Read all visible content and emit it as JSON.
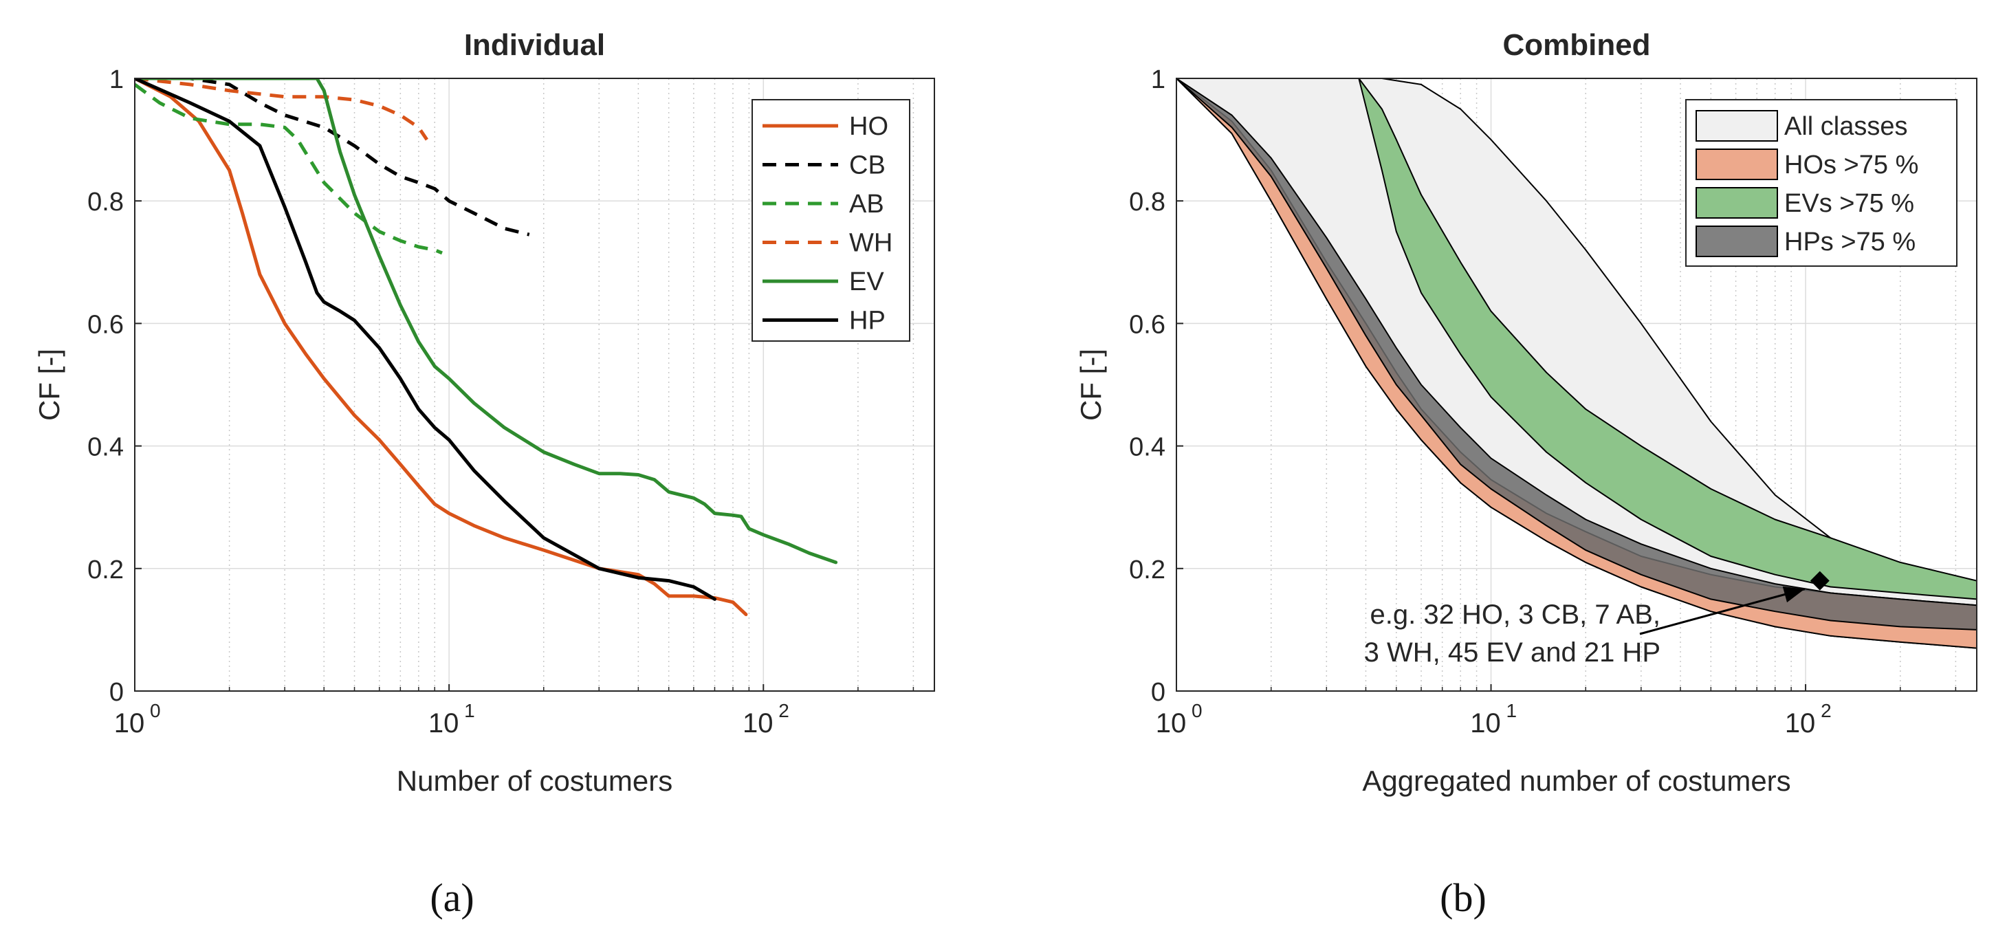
{
  "chart_data": [
    {
      "id": "a",
      "type": "line",
      "title": "Individual",
      "xlabel": "Number of costumers",
      "ylabel": "CF [-]",
      "xscale": "log",
      "xlim": [
        1,
        350
      ],
      "ylim": [
        0,
        1
      ],
      "grid": true,
      "legend_position": "top-right",
      "panel_label": "(a)",
      "x_tick_labels": [
        {
          "base": "10",
          "exp": "0"
        },
        {
          "base": "10",
          "exp": "1"
        },
        {
          "base": "10",
          "exp": "2"
        }
      ],
      "y_tick_labels": [
        "0",
        "0.2",
        "0.4",
        "0.6",
        "0.8",
        "1"
      ],
      "series": [
        {
          "name": "HO",
          "color": "#D95319",
          "dash": "solid",
          "x": [
            1,
            1.3,
            1.6,
            2,
            2.2,
            2.5,
            3,
            3.5,
            4,
            5,
            6,
            7,
            8,
            9,
            10,
            12,
            15,
            20,
            30,
            40,
            45,
            50,
            60,
            70,
            80,
            88
          ],
          "y": [
            1,
            0.97,
            0.93,
            0.85,
            0.78,
            0.68,
            0.6,
            0.55,
            0.51,
            0.45,
            0.41,
            0.37,
            0.335,
            0.305,
            0.29,
            0.27,
            0.25,
            0.23,
            0.2,
            0.19,
            0.175,
            0.155,
            0.155,
            0.152,
            0.145,
            0.125
          ]
        },
        {
          "name": "CB",
          "color": "#000000",
          "dash": "dashed",
          "x": [
            1,
            1.5,
            2,
            2.5,
            3,
            4,
            5,
            6,
            7,
            8,
            9,
            10,
            12,
            15,
            18
          ],
          "y": [
            1,
            1,
            0.99,
            0.96,
            0.94,
            0.92,
            0.89,
            0.86,
            0.84,
            0.83,
            0.82,
            0.8,
            0.78,
            0.755,
            0.745
          ]
        },
        {
          "name": "AB",
          "color": "#2E9A2E",
          "dash": "dashed",
          "x": [
            1,
            1.2,
            1.5,
            2,
            2.5,
            3,
            3.3,
            4,
            5,
            6,
            7,
            8,
            9,
            9.5
          ],
          "y": [
            0.99,
            0.96,
            0.935,
            0.925,
            0.925,
            0.92,
            0.9,
            0.83,
            0.78,
            0.75,
            0.735,
            0.725,
            0.72,
            0.715
          ]
        },
        {
          "name": "WH",
          "color": "#D95319",
          "dash": "dashed",
          "x": [
            1,
            1.5,
            2,
            3,
            4,
            5,
            6,
            7,
            8,
            8.5
          ],
          "y": [
            1,
            0.99,
            0.98,
            0.97,
            0.97,
            0.965,
            0.955,
            0.94,
            0.92,
            0.9
          ]
        },
        {
          "name": "EV",
          "color": "#2E8B2E",
          "dash": "solid",
          "x": [
            1,
            1.5,
            2,
            3,
            3.8,
            4,
            4.5,
            5,
            6,
            7,
            8,
            9,
            10,
            12,
            15,
            20,
            25,
            30,
            35,
            40,
            45,
            50,
            60,
            65,
            70,
            80,
            85,
            90,
            100,
            120,
            140,
            170
          ],
          "y": [
            1,
            1,
            1,
            1,
            1,
            0.98,
            0.88,
            0.81,
            0.71,
            0.63,
            0.57,
            0.53,
            0.51,
            0.47,
            0.43,
            0.39,
            0.37,
            0.355,
            0.355,
            0.353,
            0.345,
            0.325,
            0.315,
            0.305,
            0.29,
            0.287,
            0.285,
            0.265,
            0.255,
            0.24,
            0.225,
            0.21
          ]
        },
        {
          "name": "HP",
          "color": "#000000",
          "dash": "solid",
          "x": [
            1,
            1.5,
            2,
            2.5,
            3,
            3.5,
            3.8,
            4,
            4.5,
            5,
            6,
            7,
            8,
            9,
            10,
            12,
            15,
            20,
            30,
            40,
            50,
            60,
            70
          ],
          "y": [
            1,
            0.96,
            0.93,
            0.89,
            0.79,
            0.7,
            0.65,
            0.635,
            0.62,
            0.605,
            0.56,
            0.51,
            0.46,
            0.43,
            0.41,
            0.36,
            0.31,
            0.25,
            0.2,
            0.185,
            0.18,
            0.17,
            0.15
          ]
        }
      ]
    },
    {
      "id": "b",
      "type": "area",
      "title": "Combined",
      "xlabel": "Aggregated number of costumers",
      "ylabel": "CF [-]",
      "xscale": "log",
      "xlim": [
        1,
        350
      ],
      "ylim": [
        0,
        1
      ],
      "grid": true,
      "legend_position": "top-right",
      "panel_label": "(b)",
      "x_tick_labels": [
        {
          "base": "10",
          "exp": "0"
        },
        {
          "base": "10",
          "exp": "1"
        },
        {
          "base": "10",
          "exp": "2"
        }
      ],
      "y_tick_labels": [
        "0",
        "0.2",
        "0.4",
        "0.6",
        "0.8",
        "1"
      ],
      "bands": [
        {
          "name": "All classes",
          "fill": "#F0F0F0",
          "upper": {
            "x": [
              1,
              4.5,
              6,
              8,
              10,
              15,
              20,
              30,
              50,
              80,
              120,
              200,
              350
            ],
            "y": [
              1,
              1,
              0.99,
              0.95,
              0.9,
              0.8,
              0.72,
              0.6,
              0.44,
              0.32,
              0.25,
              0.2,
              0.15
            ]
          },
          "lower": {
            "x": [
              1,
              1.5,
              2,
              3,
              4,
              5,
              6,
              8,
              10,
              15,
              20,
              30,
              50,
              80,
              120,
              200,
              350
            ],
            "y": [
              1,
              0.91,
              0.8,
              0.64,
              0.53,
              0.46,
              0.41,
              0.34,
              0.3,
              0.245,
              0.21,
              0.17,
              0.13,
              0.105,
              0.09,
              0.08,
              0.07
            ]
          }
        },
        {
          "name": "HOs >75 %",
          "fill": "#EDA98C",
          "upper": {
            "x": [
              1,
              1.5,
              2,
              3,
              4,
              5,
              6,
              8,
              10,
              15,
              20,
              30,
              50,
              80,
              120,
              200,
              350
            ],
            "y": [
              1,
              0.93,
              0.85,
              0.7,
              0.6,
              0.52,
              0.46,
              0.39,
              0.345,
              0.29,
              0.26,
              0.22,
              0.19,
              0.17,
              0.16,
              0.15,
              0.14
            ]
          },
          "lower": {
            "x": [
              1,
              1.5,
              2,
              3,
              4,
              5,
              6,
              8,
              10,
              15,
              20,
              30,
              50,
              80,
              120,
              200,
              350
            ],
            "y": [
              1,
              0.91,
              0.8,
              0.64,
              0.53,
              0.46,
              0.41,
              0.34,
              0.3,
              0.245,
              0.21,
              0.17,
              0.13,
              0.105,
              0.09,
              0.08,
              0.07
            ]
          }
        },
        {
          "name": "EVs >75 %",
          "fill": "#8DC48A",
          "upper": {
            "x": [
              3.8,
              4.5,
              5,
              6,
              8,
              10,
              15,
              20,
              30,
              50,
              80,
              120,
              200,
              350
            ],
            "y": [
              1,
              0.95,
              0.9,
              0.81,
              0.7,
              0.62,
              0.52,
              0.46,
              0.4,
              0.33,
              0.28,
              0.25,
              0.21,
              0.18
            ]
          },
          "lower": {
            "x": [
              3.8,
              4.5,
              5,
              6,
              8,
              10,
              15,
              20,
              30,
              50,
              80,
              120,
              200,
              350
            ],
            "y": [
              1,
              0.85,
              0.75,
              0.65,
              0.55,
              0.48,
              0.39,
              0.34,
              0.28,
              0.22,
              0.19,
              0.17,
              0.16,
              0.15
            ]
          }
        },
        {
          "name": "HPs >75 %",
          "fill": "#6B6B6B",
          "opacity": 0.85,
          "upper": {
            "x": [
              1,
              1.5,
              2,
              3,
              4,
              5,
              6,
              8,
              10,
              15,
              20,
              30,
              50,
              80,
              120,
              200,
              350
            ],
            "y": [
              1,
              0.94,
              0.87,
              0.74,
              0.64,
              0.56,
              0.5,
              0.43,
              0.38,
              0.32,
              0.28,
              0.24,
              0.2,
              0.175,
              0.16,
              0.15,
              0.14
            ]
          },
          "lower": {
            "x": [
              1,
              1.5,
              2,
              3,
              4,
              5,
              6,
              8,
              10,
              15,
              20,
              30,
              50,
              80,
              120,
              200,
              350
            ],
            "y": [
              1,
              0.92,
              0.84,
              0.69,
              0.58,
              0.5,
              0.45,
              0.37,
              0.33,
              0.27,
              0.23,
              0.19,
              0.15,
              0.13,
              0.115,
              0.105,
              0.1
            ]
          }
        }
      ],
      "annotation": {
        "lines": [
          "e.g. 32 HO, 3 CB, 7 AB,",
          "3 WH, 45 EV and 21 HP"
        ],
        "point_x": 111,
        "point_y": 0.18
      }
    }
  ]
}
